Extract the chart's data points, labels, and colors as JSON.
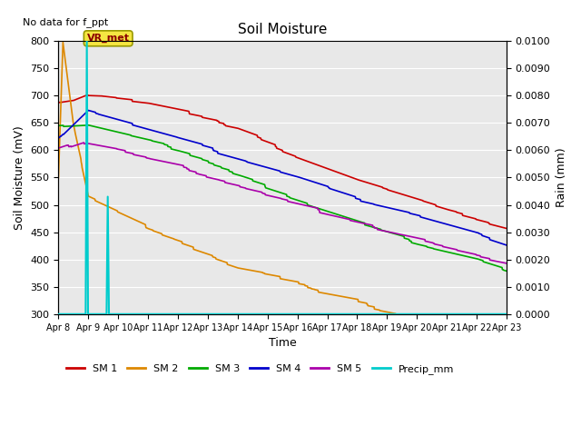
{
  "title": "Soil Moisture",
  "xlabel": "Time",
  "ylabel_left": "Soil Moisture (mV)",
  "ylabel_right": "Rain (mm)",
  "annotation_text": "No data for f_ppt",
  "vr_met_label": "VR_met",
  "ylim_left": [
    300,
    800
  ],
  "ylim_right": [
    0.0,
    0.01
  ],
  "yticks_left": [
    300,
    350,
    400,
    450,
    500,
    550,
    600,
    650,
    700,
    750,
    800
  ],
  "yticks_right": [
    0.0,
    0.001,
    0.002,
    0.003,
    0.004,
    0.005,
    0.006,
    0.007,
    0.008,
    0.009,
    0.01
  ],
  "yticks_right_labels": [
    "0.0000",
    "0.0010",
    "0.0020",
    "0.0030",
    "0.0040",
    "0.0050",
    "0.0060",
    "0.0070",
    "0.0080",
    "0.0090",
    "0.0100"
  ],
  "xtick_labels": [
    "Apr 8",
    "Apr 9",
    "Apr 10",
    "Apr 11",
    "Apr 12",
    "Apr 13",
    "Apr 14",
    "Apr 15",
    "Apr 16",
    "Apr 17",
    "Apr 18",
    "Apr 19",
    "Apr 20",
    "Apr 21",
    "Apr 22",
    "Apr 23"
  ],
  "xtick_positions": [
    0,
    1,
    2,
    3,
    4,
    5,
    6,
    7,
    8,
    9,
    10,
    11,
    12,
    13,
    14,
    15
  ],
  "colors": {
    "SM1": "#cc0000",
    "SM2": "#dd8800",
    "SM3": "#00aa00",
    "SM4": "#0000cc",
    "SM5": "#aa00aa",
    "Precip": "#00cccc",
    "background": "#e8e8e8"
  }
}
